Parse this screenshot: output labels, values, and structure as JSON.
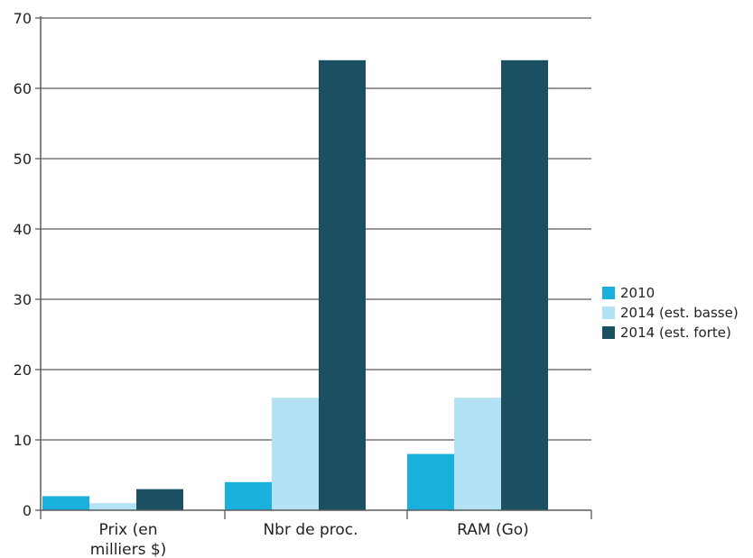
{
  "chart_data": {
    "type": "bar",
    "title": "",
    "xlabel": "",
    "ylabel": "",
    "ylim": [
      0,
      70
    ],
    "yticks": [
      "0",
      "10",
      "20",
      "30",
      "40",
      "50",
      "60",
      "70"
    ],
    "grid": true,
    "legend_position": "right",
    "categories": [
      [
        "Prix (en",
        "milliers $)"
      ],
      [
        "Nbr de proc."
      ],
      [
        "RAM (Go)"
      ]
    ],
    "series": [
      {
        "name": "2010",
        "color": "#1ab0de",
        "values": [
          2,
          4,
          8
        ]
      },
      {
        "name": "2014 (est. basse)",
        "color": "#b3e1f5",
        "values": [
          1,
          16,
          16
        ]
      },
      {
        "name": "2014 (est. forte)",
        "color": "#1a5062",
        "values": [
          3,
          64,
          64
        ]
      }
    ]
  }
}
